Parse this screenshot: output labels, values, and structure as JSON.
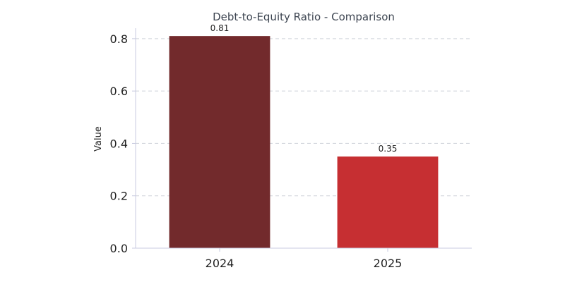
{
  "chart_data": {
    "type": "bar",
    "title": "Debt-to-Equity Ratio - Comparison",
    "xlabel": "",
    "ylabel": "Value",
    "categories": [
      "2024",
      "2025"
    ],
    "values": [
      0.81,
      0.35
    ],
    "data_labels": [
      "0.81",
      "0.35"
    ],
    "bar_colors": [
      "#722a2c",
      "#c62f32"
    ],
    "ylim": [
      0,
      0.84
    ],
    "yticks": [
      0.0,
      0.2,
      0.4,
      0.6,
      0.8
    ],
    "ytick_labels": [
      "0.0",
      "0.2",
      "0.4",
      "0.6",
      "0.8"
    ],
    "grid": "horizontal dashed",
    "legend": "none"
  }
}
